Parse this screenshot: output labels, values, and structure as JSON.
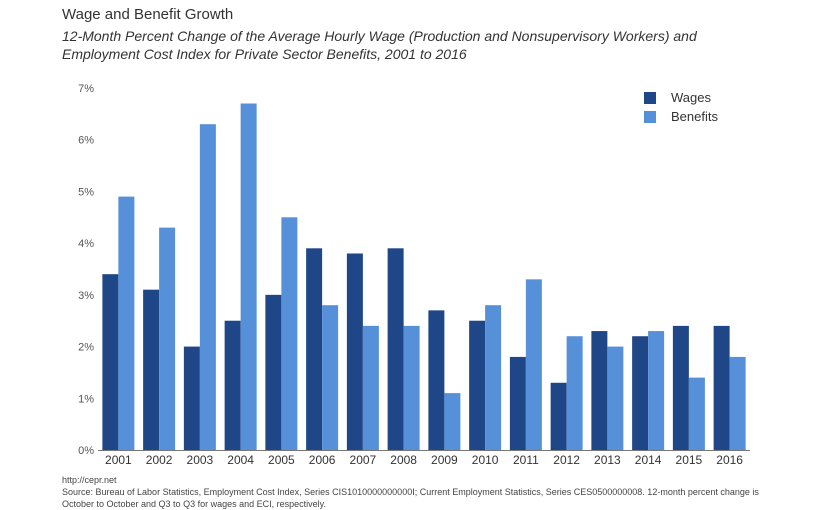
{
  "header": {
    "title": "Wage and Benefit Growth",
    "subtitle": "12-Month Percent Change of the Average Hourly Wage (Production and Nonsupervisory Workers) and Employment Cost Index for Private Sector Benefits, 2001 to 2016"
  },
  "footer": {
    "url": "http://cepr.net",
    "source": "Source: Bureau of Labor Statistics, Employment Cost Index, Series CIS1010000000000I;  Current Employment Statistics, Series CES0500000008. 12-month percent change is October to October and Q3 to Q3 for wages and ECI, respectively."
  },
  "chart_data": {
    "type": "bar",
    "title": "Wage and Benefit Growth",
    "subtitle": "12-Month Percent Change of the Average Hourly Wage (Production and Nonsupervisory Workers) and Employment Cost Index for Private Sector Benefits, 2001 to 2016",
    "categories": [
      "2001",
      "2002",
      "2003",
      "2004",
      "2005",
      "2006",
      "2007",
      "2008",
      "2009",
      "2010",
      "2011",
      "2012",
      "2013",
      "2014",
      "2015",
      "2016"
    ],
    "series": [
      {
        "name": "Wages",
        "color": "#1f4788",
        "values": [
          3.4,
          3.1,
          2.0,
          2.5,
          3.0,
          3.9,
          3.8,
          3.9,
          2.7,
          2.5,
          1.8,
          1.3,
          2.3,
          2.2,
          2.4,
          2.4
        ]
      },
      {
        "name": "Benefits",
        "color": "#5590d9",
        "values": [
          4.9,
          4.3,
          6.3,
          6.7,
          4.5,
          2.8,
          2.4,
          2.4,
          1.1,
          2.8,
          3.3,
          2.2,
          2.0,
          2.3,
          1.4,
          1.8
        ]
      }
    ],
    "ylim": [
      0,
      7
    ],
    "yticks": [
      "0%",
      "1%",
      "2%",
      "3%",
      "4%",
      "5%",
      "6%",
      "7%"
    ],
    "grid": false,
    "legend": "top-right"
  }
}
